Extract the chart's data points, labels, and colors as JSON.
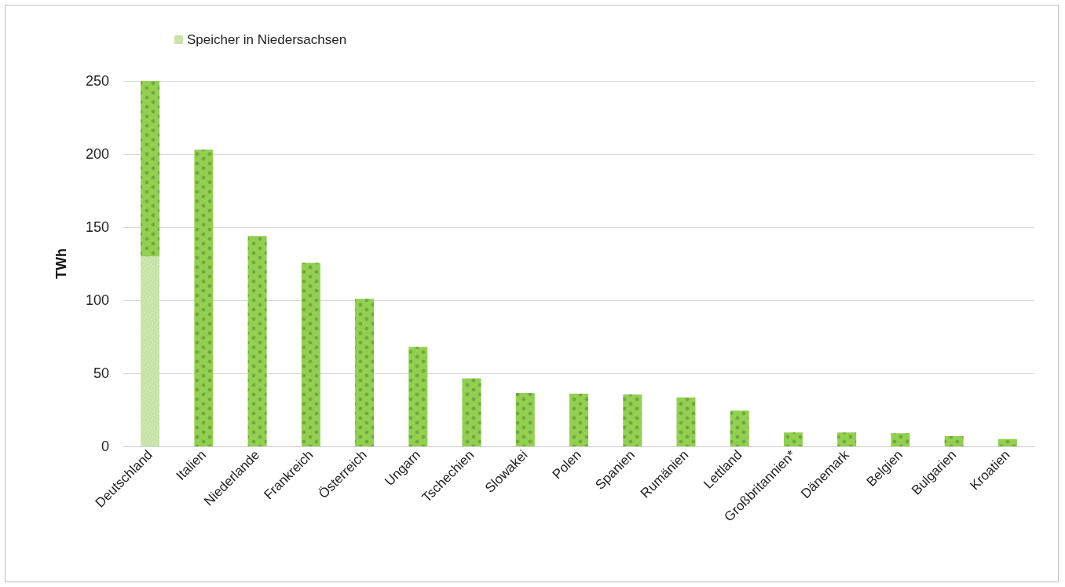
{
  "chart_data": {
    "type": "bar",
    "stacked": true,
    "ylabel": "TWh",
    "categories": [
      "Deutschland",
      "Italien",
      "Niederlande",
      "Frankreich",
      "Österreich",
      "Ungarn",
      "Tschechien",
      "Slowakei",
      "Polen",
      "Spanien",
      "Rumänien",
      "Lettland",
      "Großbritannien*",
      "Dänemark",
      "Belgien",
      "Bulgarien",
      "Kroatien"
    ],
    "series": [
      {
        "name": "Speicher in Niedersachsen",
        "color": "#c5e3a5",
        "values": [
          130,
          null,
          null,
          null,
          null,
          null,
          null,
          null,
          null,
          null,
          null,
          null,
          null,
          null,
          null,
          null,
          null
        ]
      },
      {
        "color": "#92d050",
        "values": [
          121,
          203,
          144,
          125.5,
          101,
          68,
          46.5,
          36.5,
          36,
          35.5,
          33.5,
          24.5,
          9.5,
          9.5,
          9,
          7,
          5
        ]
      }
    ],
    "ylim": [
      0,
      250
    ],
    "yticks": [
      0,
      50,
      100,
      150,
      200,
      250
    ],
    "grid": "y",
    "legend": "top left"
  }
}
